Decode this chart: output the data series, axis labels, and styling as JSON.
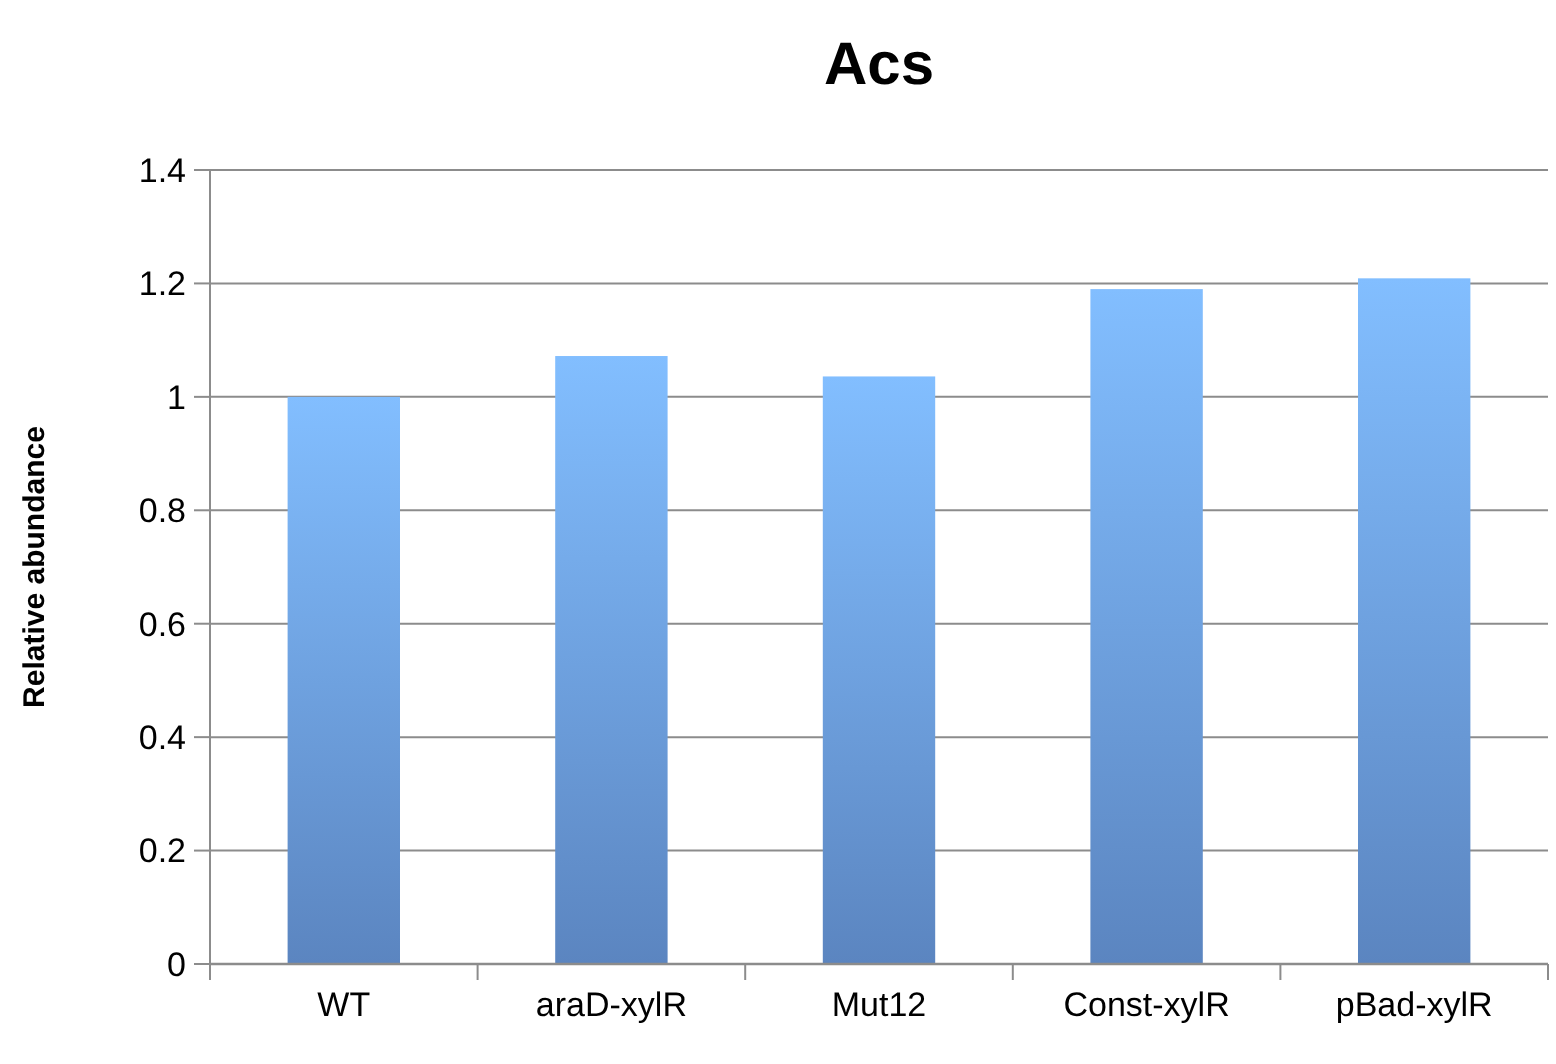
{
  "chart_data": {
    "type": "bar",
    "title": "Acs",
    "ylabel": "Relative abundance",
    "categories": [
      "WT",
      "araD-xylR",
      "Mut12",
      "Const-xylR",
      "pBad-xylR"
    ],
    "values": [
      1.0,
      1.072,
      1.036,
      1.19,
      1.209
    ],
    "color": "#6d9fe6",
    "ylim": [
      0,
      1.4
    ],
    "yticks": [
      0,
      0.2,
      0.4,
      0.6,
      0.8,
      1,
      1.2,
      1.4
    ],
    "grid": "y"
  }
}
